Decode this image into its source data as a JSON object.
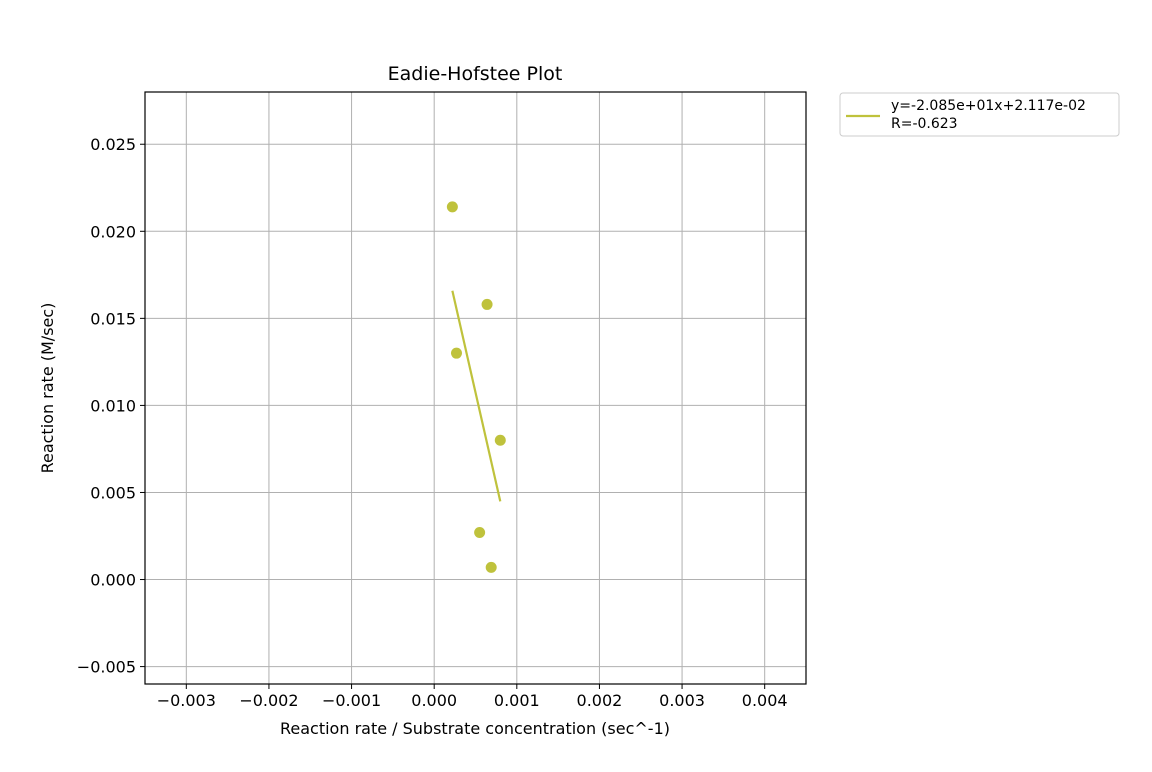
{
  "chart_data": {
    "type": "scatter",
    "title": "Eadie-Hofstee Plot",
    "xlabel": "Reaction rate / Substrate concentration (sec^-1)",
    "ylabel": "Reaction rate (M/sec)",
    "xlim": [
      -0.0035,
      0.0045
    ],
    "ylim": [
      -0.006,
      0.028
    ],
    "grid": true,
    "x_ticks": [
      {
        "value": -0.003,
        "label": "−0.003"
      },
      {
        "value": -0.002,
        "label": "−0.002"
      },
      {
        "value": -0.001,
        "label": "−0.001"
      },
      {
        "value": 0.0,
        "label": "0.000"
      },
      {
        "value": 0.001,
        "label": "0.001"
      },
      {
        "value": 0.002,
        "label": "0.002"
      },
      {
        "value": 0.003,
        "label": "0.003"
      },
      {
        "value": 0.004,
        "label": "0.004"
      }
    ],
    "y_ticks": [
      {
        "value": -0.005,
        "label": "−0.005"
      },
      {
        "value": 0.0,
        "label": "0.000"
      },
      {
        "value": 0.005,
        "label": "0.005"
      },
      {
        "value": 0.01,
        "label": "0.010"
      },
      {
        "value": 0.015,
        "label": "0.015"
      },
      {
        "value": 0.02,
        "label": "0.020"
      },
      {
        "value": 0.025,
        "label": "0.025"
      }
    ],
    "points": [
      {
        "x": 0.00022,
        "y": 0.0214
      },
      {
        "x": 0.00064,
        "y": 0.0158
      },
      {
        "x": 0.00027,
        "y": 0.013
      },
      {
        "x": 0.0008,
        "y": 0.008
      },
      {
        "x": 0.00055,
        "y": 0.0027
      },
      {
        "x": 0.00069,
        "y": 0.0007
      }
    ],
    "fit_line": {
      "slope": -20.85,
      "intercept": 0.02117,
      "x_range": [
        0.00022,
        0.0008
      ]
    },
    "legend": {
      "placement": "outside-top-right",
      "entries": [
        {
          "line1": "y=-2.085e+01x+2.117e-02",
          "line2": "R=-0.623"
        }
      ]
    },
    "color": "#bfc23c"
  }
}
